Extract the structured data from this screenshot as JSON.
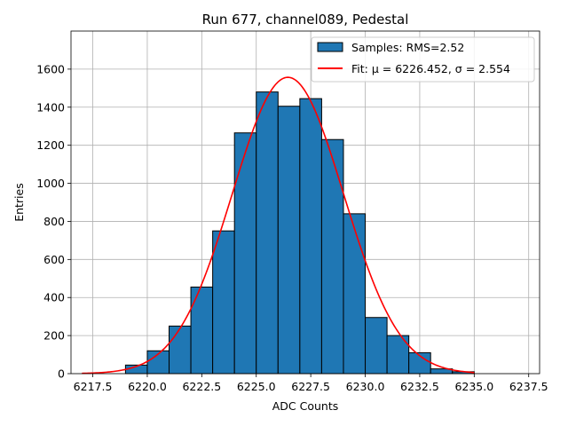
{
  "colors": {
    "bar_fill": "#1f77b4",
    "bar_edge": "#000000",
    "fit_line": "#ff0000",
    "grid": "#b0b0b0"
  },
  "chart_data": {
    "type": "bar",
    "title": "Run 677, channel089, Pedestal",
    "xlabel": "ADC Counts",
    "ylabel": "Entries",
    "xlim": [
      6216.5,
      6238.0
    ],
    "ylim": [
      0,
      1800
    ],
    "xticks": [
      6217.5,
      6220.0,
      6222.5,
      6225.0,
      6227.5,
      6230.0,
      6232.5,
      6235.0,
      6237.5
    ],
    "xtick_labels": [
      "6217.5",
      "6220.0",
      "6222.5",
      "6225.0",
      "6227.5",
      "6230.0",
      "6232.5",
      "6235.0",
      "6237.5"
    ],
    "yticks": [
      0,
      200,
      400,
      600,
      800,
      1000,
      1200,
      1400,
      1600
    ],
    "ytick_labels": [
      "0",
      "200",
      "400",
      "600",
      "800",
      "1000",
      "1200",
      "1400",
      "1600"
    ],
    "grid": true,
    "legend_position": "top-right",
    "series": [
      {
        "name": "Samples: RMS=2.52",
        "kind": "histogram",
        "bin_edges": [
          6219.0,
          6220.0,
          6221.0,
          6222.0,
          6223.0,
          6224.0,
          6225.0,
          6226.0,
          6227.0,
          6228.0,
          6229.0,
          6230.0,
          6231.0,
          6232.0,
          6233.0,
          6234.0,
          6235.0
        ],
        "values": [
          45,
          120,
          250,
          455,
          750,
          1265,
          1480,
          1405,
          1445,
          1230,
          840,
          295,
          200,
          110,
          25,
          10
        ]
      },
      {
        "name": "Fit: μ = 6226.452, σ = 2.554",
        "kind": "gaussian_fit",
        "mu": 6226.452,
        "sigma": 2.554,
        "amplitude": 1557,
        "x_range": [
          6217.0,
          6235.0
        ]
      }
    ]
  }
}
